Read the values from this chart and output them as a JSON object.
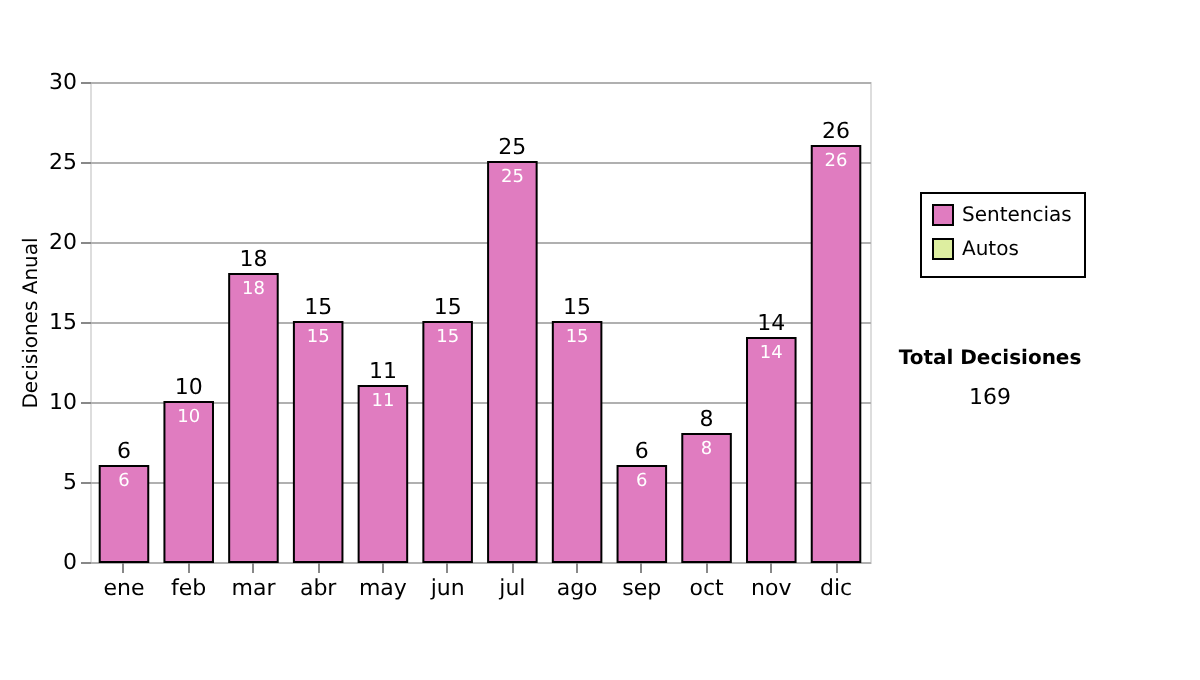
{
  "chart_data": {
    "type": "bar",
    "stacked": true,
    "ylabel": "Decisiones Anual",
    "categories": [
      "ene",
      "feb",
      "mar",
      "abr",
      "may",
      "jun",
      "jul",
      "ago",
      "sep",
      "oct",
      "nov",
      "dic"
    ],
    "series": [
      {
        "name": "Sentencias",
        "color": "#e07cc0",
        "values": [
          6,
          10,
          18,
          15,
          11,
          15,
          25,
          15,
          6,
          8,
          14,
          26
        ],
        "value_labels": [
          "6",
          "10",
          "18",
          "15",
          "11",
          "15",
          "25",
          "15",
          "6",
          "8",
          "14",
          "26"
        ]
      },
      {
        "name": "Autos",
        "color": "#ddeea0",
        "values": [
          0,
          0,
          0,
          0,
          0,
          0,
          0,
          0,
          0,
          0,
          0,
          0
        ]
      }
    ],
    "totals": [
      "6",
      "10",
      "18",
      "15",
      "11",
      "15",
      "25",
      "15",
      "6",
      "8",
      "14",
      "26"
    ],
    "ylim": [
      0,
      30
    ],
    "yticks": [
      0,
      5,
      10,
      15,
      20,
      25,
      30
    ],
    "grid": "y",
    "legend": "right",
    "annotations": [
      "Total Decisiones",
      "169"
    ]
  }
}
